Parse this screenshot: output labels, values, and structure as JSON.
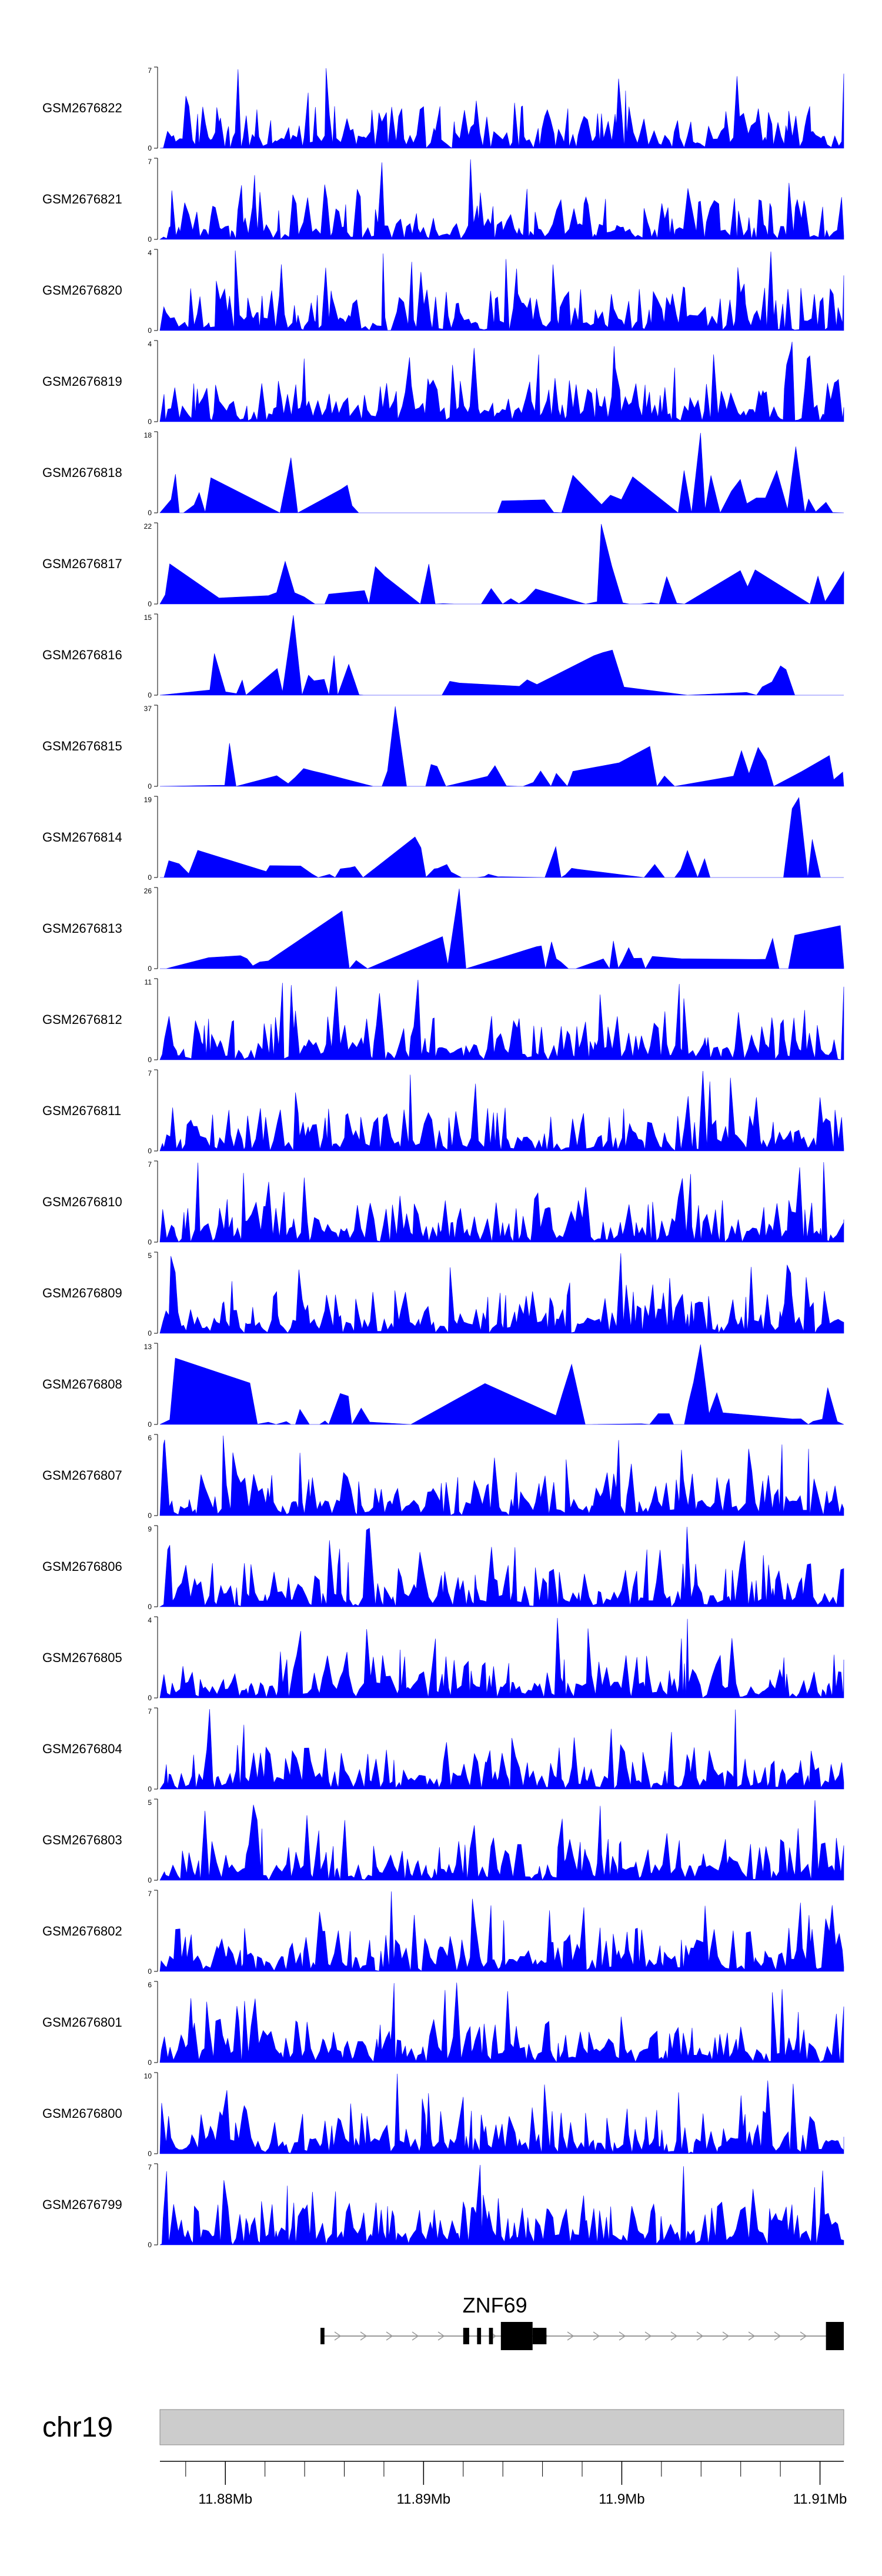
{
  "chart_data": {
    "type": "area",
    "description_axis": "genomic coverage tracks",
    "series_color": "#0000FF",
    "x_range_mb": [
      11.8767,
      11.9112
    ],
    "tracks": [
      {
        "name": "GSM2676822",
        "ymin": 0,
        "ymax": 7
      },
      {
        "name": "GSM2676821",
        "ymin": 0,
        "ymax": 7
      },
      {
        "name": "GSM2676820",
        "ymin": 0,
        "ymax": 4
      },
      {
        "name": "GSM2676819",
        "ymin": 0,
        "ymax": 4
      },
      {
        "name": "GSM2676818",
        "ymin": 0,
        "ymax": 18
      },
      {
        "name": "GSM2676817",
        "ymin": 0,
        "ymax": 22
      },
      {
        "name": "GSM2676816",
        "ymin": 0,
        "ymax": 15
      },
      {
        "name": "GSM2676815",
        "ymin": 0,
        "ymax": 37
      },
      {
        "name": "GSM2676814",
        "ymin": 0,
        "ymax": 19
      },
      {
        "name": "GSM2676813",
        "ymin": 0,
        "ymax": 26
      },
      {
        "name": "GSM2676812",
        "ymin": 0,
        "ymax": 11
      },
      {
        "name": "GSM2676811",
        "ymin": 0,
        "ymax": 7
      },
      {
        "name": "GSM2676810",
        "ymin": 0,
        "ymax": 7
      },
      {
        "name": "GSM2676809",
        "ymin": 0,
        "ymax": 5
      },
      {
        "name": "GSM2676808",
        "ymin": 0,
        "ymax": 13
      },
      {
        "name": "GSM2676807",
        "ymin": 0,
        "ymax": 6
      },
      {
        "name": "GSM2676806",
        "ymin": 0,
        "ymax": 9
      },
      {
        "name": "GSM2676805",
        "ymin": 0,
        "ymax": 4
      },
      {
        "name": "GSM2676804",
        "ymin": 0,
        "ymax": 7
      },
      {
        "name": "GSM2676803",
        "ymin": 0,
        "ymax": 5
      },
      {
        "name": "GSM2676802",
        "ymin": 0,
        "ymax": 7
      },
      {
        "name": "GSM2676801",
        "ymin": 0,
        "ymax": 6
      },
      {
        "name": "GSM2676800",
        "ymin": 0,
        "ymax": 10
      },
      {
        "name": "GSM2676799",
        "ymin": 0,
        "ymax": 7
      }
    ],
    "gene": {
      "name": "ZNF69",
      "start_mb": 11.8848,
      "end_mb": 11.9112,
      "strand": "+",
      "exons_mb": [
        [
          11.8848,
          11.885,
          "utr"
        ],
        [
          11.892,
          11.8923,
          "utr"
        ],
        [
          11.8927,
          11.8929,
          "utr"
        ],
        [
          11.8933,
          11.8935,
          "utr"
        ],
        [
          11.8939,
          11.8955,
          "cds"
        ],
        [
          11.8955,
          11.8962,
          "utr"
        ],
        [
          11.9103,
          11.9112,
          "cds"
        ]
      ]
    },
    "axis": {
      "chromosome": "chr19",
      "tick_labels": [
        {
          "mb": 11.88,
          "label": "11.88Mb"
        },
        {
          "mb": 11.89,
          "label": "11.89Mb"
        },
        {
          "mb": 11.9,
          "label": "11.9Mb"
        },
        {
          "mb": 11.91,
          "label": "11.91Mb"
        }
      ],
      "minor_tick_step_mb": 0.002
    }
  }
}
